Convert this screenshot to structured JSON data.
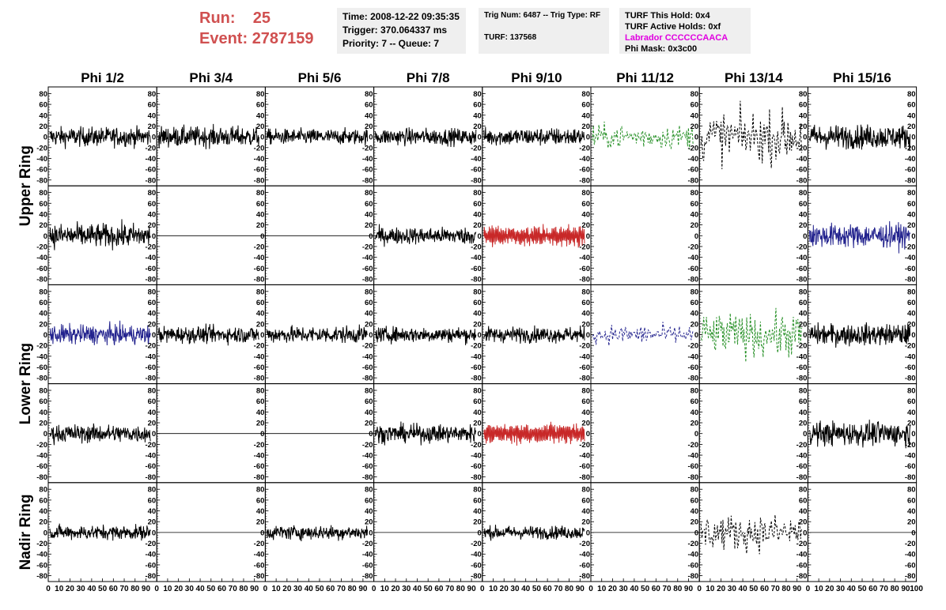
{
  "header": {
    "run_label": "Run:",
    "run_value": "25",
    "event_label": "Event:",
    "event_value": "2787159",
    "time": "Time: 2008-12-22 09:35:35",
    "trigger": "Trigger: 370.064337 ms",
    "priority": "Priority: 7 -- Queue: 7",
    "trig_num": "Trig Num: 6487 -- Trig Type: RF",
    "turf": "TURF: 137568",
    "turf_this_hold": "TURF This Hold: 0x4",
    "turf_active_holds": "TURF Active Holds: 0xf",
    "labrador": "Labrador CCCCCCAACA",
    "phi_mask": "Phi Mask: 0x3c00"
  },
  "chart_data": {
    "type": "line",
    "columns": [
      "Phi 1/2",
      "Phi 3/4",
      "Phi 5/6",
      "Phi 7/8",
      "Phi 9/10",
      "Phi 11/12",
      "Phi 13/14",
      "Phi 15/16"
    ],
    "ring_labels": [
      {
        "text": "Upper Ring",
        "rows": [
          0,
          1
        ]
      },
      {
        "text": "Lower Ring",
        "rows": [
          2,
          3
        ]
      },
      {
        "text": "Nadir Ring",
        "rows": [
          4
        ]
      }
    ],
    "ylim": [
      -85,
      85
    ],
    "xlim": [
      0,
      100
    ],
    "y_ticks": [
      "-80",
      "-60",
      "-40",
      "-20",
      "0",
      "20",
      "40",
      "60",
      "80"
    ],
    "x_ticks": [
      "0",
      "10",
      "20",
      "30",
      "40",
      "50",
      "60",
      "70",
      "80",
      "90",
      "100"
    ],
    "colors": {
      "normal": "#000000",
      "red": "#c82828",
      "blue": "#23238e",
      "green": "#238e23"
    },
    "panels": [
      [
        {
          "c": "normal",
          "s": "solid",
          "a": 16
        },
        {
          "c": "normal",
          "s": "solid",
          "a": 17
        },
        {
          "c": "normal",
          "s": "solid",
          "a": 13
        },
        {
          "c": "normal",
          "s": "solid",
          "a": 14
        },
        {
          "c": "normal",
          "s": "solid",
          "a": 15
        },
        {
          "c": "green",
          "s": "dashed",
          "a": 20
        },
        {
          "c": "normal",
          "s": "dashed",
          "a": 42
        },
        {
          "c": "normal",
          "s": "solid",
          "a": 20
        }
      ],
      [
        {
          "c": "normal",
          "s": "solid",
          "a": 20
        },
        {
          "c": "normal",
          "s": "flat",
          "a": 0
        },
        {
          "c": "normal",
          "s": "flat",
          "a": 0
        },
        {
          "c": "normal",
          "s": "solid",
          "a": 14
        },
        {
          "c": "red",
          "s": "solid",
          "a": 18
        },
        {
          "c": "normal",
          "s": "empty",
          "a": 0
        },
        {
          "c": "normal",
          "s": "empty",
          "a": 0
        },
        {
          "c": "blue",
          "s": "solid",
          "a": 20
        }
      ],
      [
        {
          "c": "blue",
          "s": "solid",
          "a": 16
        },
        {
          "c": "normal",
          "s": "solid",
          "a": 14
        },
        {
          "c": "normal",
          "s": "solid",
          "a": 14
        },
        {
          "c": "normal",
          "s": "solid",
          "a": 13
        },
        {
          "c": "normal",
          "s": "solid",
          "a": 13
        },
        {
          "c": "blue",
          "s": "dashed",
          "a": 16
        },
        {
          "c": "green",
          "s": "dashed",
          "a": 36
        },
        {
          "c": "normal",
          "s": "solid",
          "a": 18
        }
      ],
      [
        {
          "c": "normal",
          "s": "solid",
          "a": 15
        },
        {
          "c": "normal",
          "s": "flat",
          "a": 0
        },
        {
          "c": "normal",
          "s": "flat",
          "a": 0
        },
        {
          "c": "normal",
          "s": "solid",
          "a": 15
        },
        {
          "c": "red",
          "s": "solid",
          "a": 18
        },
        {
          "c": "normal",
          "s": "empty",
          "a": 0
        },
        {
          "c": "normal",
          "s": "empty",
          "a": 0
        },
        {
          "c": "normal",
          "s": "solid",
          "a": 20
        }
      ],
      [
        {
          "c": "normal",
          "s": "solid",
          "a": 12
        },
        {
          "c": "normal",
          "s": "flat",
          "a": 0
        },
        {
          "c": "normal",
          "s": "solid",
          "a": 12
        },
        {
          "c": "normal",
          "s": "flat",
          "a": 0
        },
        {
          "c": "normal",
          "s": "solid",
          "a": 11
        },
        {
          "c": "normal",
          "s": "flat",
          "a": 0
        },
        {
          "c": "normal",
          "s": "dashed",
          "a": 30
        },
        {
          "c": "normal",
          "s": "flat",
          "a": 0
        }
      ]
    ]
  }
}
